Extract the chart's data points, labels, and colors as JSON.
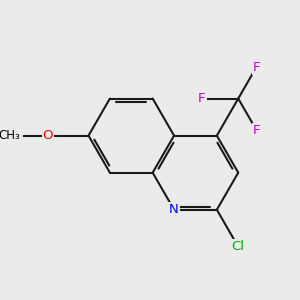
{
  "background_color": "#ebebeb",
  "bond_color": "#1a1a1a",
  "bond_width": 1.5,
  "atom_colors": {
    "N": "#0000ff",
    "O": "#ff0000",
    "Cl": "#00aa00",
    "F": "#cc00cc",
    "C": "#000000"
  },
  "font_size": 9.5,
  "figsize": [
    3.0,
    3.0
  ],
  "dpi": 100,
  "xlim": [
    0,
    10
  ],
  "ylim": [
    0,
    10
  ]
}
